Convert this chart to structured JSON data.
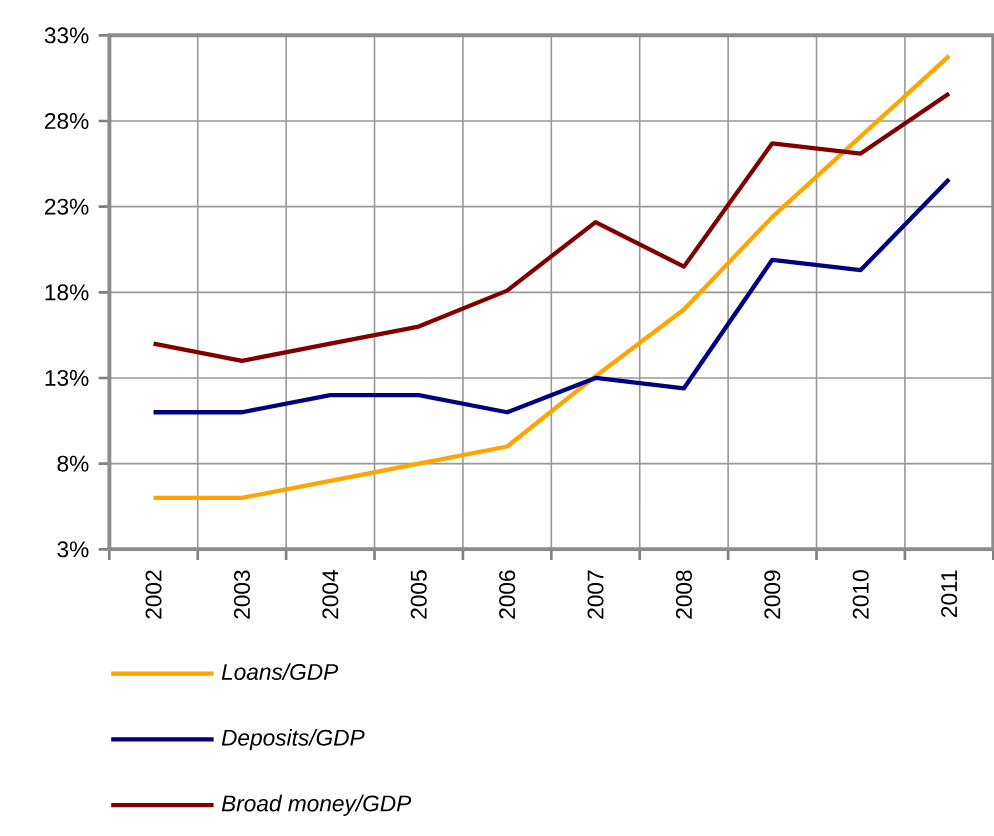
{
  "chart_data": {
    "type": "line",
    "categories": [
      "2002",
      "2003",
      "2004",
      "2005",
      "2006",
      "2007",
      "2008",
      "2009",
      "2010",
      "2011"
    ],
    "series": [
      {
        "name": "Loans/GDP",
        "color": "#ffa500",
        "values": [
          6,
          6,
          7,
          8,
          9,
          13.1,
          17,
          22.4,
          27.1,
          31.8
        ]
      },
      {
        "name": "Deposits/GDP",
        "color": "#000080",
        "values": [
          11,
          11,
          12,
          12,
          11,
          13,
          12.4,
          19.9,
          19.3,
          24.6
        ]
      },
      {
        "name": "Broad money/GDP",
        "color": "#800000",
        "values": [
          15,
          14,
          15,
          16,
          18.1,
          22.1,
          19.5,
          26.7,
          26.1,
          29.6
        ]
      }
    ],
    "ylim": [
      3,
      33
    ],
    "yticks": [
      {
        "value": 3,
        "label": "3%"
      },
      {
        "value": 8,
        "label": "8%"
      },
      {
        "value": 13,
        "label": "13%"
      },
      {
        "value": 18,
        "label": "18%"
      },
      {
        "value": 23,
        "label": "23%"
      },
      {
        "value": 28,
        "label": "28%"
      },
      {
        "value": 33,
        "label": "33%"
      }
    ],
    "grid": true,
    "legend": "bottom"
  }
}
